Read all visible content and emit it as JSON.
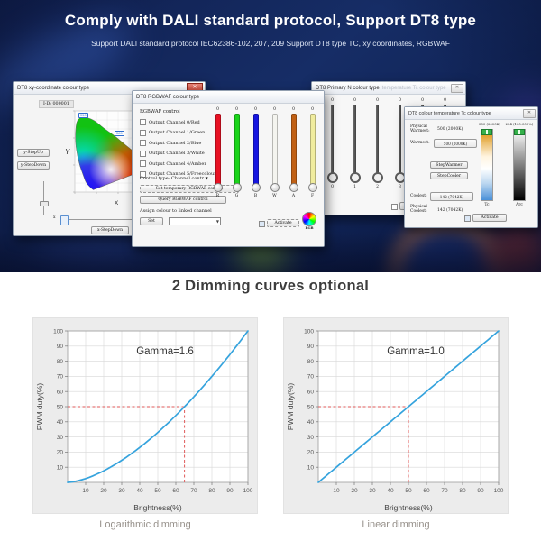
{
  "hero": {
    "title": "Comply with DALI standard protocol, Support DT8 type",
    "subtitle": "Support DALI standard protocol IEC62386-102, 207, 209 Support DT8 type TC, xy coordinates, RGBWAF"
  },
  "windows": {
    "xy": {
      "title": "DT8 xy-coordinate colour type",
      "id_value": "I-D: 000001",
      "y_axis_label": "Y",
      "x_axis_label": "X",
      "x_slider_label": "x",
      "wavelength_labels": [
        "520",
        "560"
      ],
      "y_step_up": "y-StepUp",
      "y_step_down": "y-StepDown",
      "x_step_down": "x-StepDown",
      "x_step_up": "x-StepUp",
      "close_glyph": "✕"
    },
    "rgbwaf": {
      "title": "DT8 RGBWAF colour type",
      "control_label": "RGBWAF control",
      "channels": [
        "Output Channel 0/Red",
        "Output Channel 1/Green",
        "Output Channel 2/Blue",
        "Output Channel 3/White",
        "Output Channel 4/Amber",
        "Output Channel 5/Freecolour"
      ],
      "control_type_label": "Control type: Channel contr",
      "set_temporary_button": "Set temporary RGBWAF control",
      "query_button": "Query RGBWAF control",
      "assign_label": "Assign colour to linked channel",
      "set_button": "Set",
      "activate_button": "Activate",
      "rgb_icon_label": "RGB",
      "sliders": [
        {
          "value": "0",
          "label": "R",
          "color": "#e81123"
        },
        {
          "value": "0",
          "label": "G",
          "color": "#1ad41a"
        },
        {
          "value": "0",
          "label": "B",
          "color": "#1616e0"
        },
        {
          "value": "0",
          "label": "W",
          "color": "#f4f4ef"
        },
        {
          "value": "0",
          "label": "A",
          "color": "#c06014"
        },
        {
          "value": "0",
          "label": "F",
          "color": "#f0ec9e"
        }
      ]
    },
    "primary": {
      "title": "DT8 Primary N colour type",
      "title_ghost": "temperature Tc colour type",
      "activate_button": "Activate",
      "close_glyph": "✕",
      "sliders": [
        {
          "value": "0",
          "label": "0"
        },
        {
          "value": "0",
          "label": "1"
        },
        {
          "value": "0",
          "label": "2"
        },
        {
          "value": "0",
          "label": "3"
        },
        {
          "value": "0",
          "label": "4"
        },
        {
          "value": "0",
          "label": "5"
        }
      ]
    },
    "tc": {
      "title": "DT8 colour temperature Tc colour type",
      "close_glyph": "✕",
      "physical_warmest_label": "Physical Warmest:",
      "physical_warmest_value": "500 (2000K)",
      "warmest_label": "Warmest:",
      "warmest_value": "500 (2000K)",
      "step_warmer_button": "StepWarmer",
      "step_cooler_button": "StepCooler",
      "coolest_label": "Coolest:",
      "coolest_value": "142 (7042K)",
      "physical_coolest_label": "Physical Coolest:",
      "physical_coolest_value": "142 (7042K)",
      "tc_slider_top": "500 (2000K)",
      "arc_slider_top": "254 (100.000%)",
      "tc_slider_label": "Tc",
      "arc_slider_label": "Arc",
      "activate_button": "Activate"
    }
  },
  "section": {
    "heading": "2 Dimming curves optional"
  },
  "chart_data": [
    {
      "type": "line",
      "annotation": "Gamma=1.6",
      "gamma": 1.6,
      "xlabel": "Brightness(%)",
      "ylabel": "PWM duty(%)",
      "xlim": [
        0,
        100
      ],
      "ylim": [
        0,
        100
      ],
      "xticks": [
        10,
        20,
        30,
        40,
        50,
        60,
        70,
        80,
        90,
        100
      ],
      "yticks": [
        10,
        20,
        30,
        40,
        50,
        60,
        70,
        80,
        90,
        100
      ],
      "grid": true,
      "x": [
        0,
        10,
        20,
        30,
        40,
        50,
        60,
        70,
        80,
        90,
        100
      ],
      "y": [
        0,
        2.5,
        7.6,
        14.6,
        23.1,
        33.0,
        44.2,
        56.5,
        70.0,
        84.5,
        100
      ],
      "reference": {
        "brightness": 64.8,
        "pwm": 50
      },
      "line_color": "#35a3dd",
      "ref_color": "#e05a5a",
      "caption": "Logarithmic dimming"
    },
    {
      "type": "line",
      "annotation": "Gamma=1.0",
      "gamma": 1.0,
      "xlabel": "Brightness(%)",
      "ylabel": "PWM duty(%)",
      "xlim": [
        0,
        100
      ],
      "ylim": [
        0,
        100
      ],
      "xticks": [
        10,
        20,
        30,
        40,
        50,
        60,
        70,
        80,
        90,
        100
      ],
      "yticks": [
        10,
        20,
        30,
        40,
        50,
        60,
        70,
        80,
        90,
        100
      ],
      "grid": true,
      "x": [
        0,
        10,
        20,
        30,
        40,
        50,
        60,
        70,
        80,
        90,
        100
      ],
      "y": [
        0,
        10,
        20,
        30,
        40,
        50,
        60,
        70,
        80,
        90,
        100
      ],
      "reference": {
        "brightness": 50,
        "pwm": 50
      },
      "line_color": "#35a3dd",
      "ref_color": "#e05a5a",
      "caption": "Linear dimming"
    }
  ]
}
